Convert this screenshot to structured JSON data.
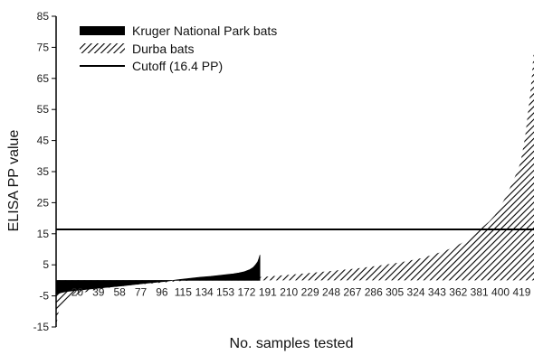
{
  "chart_data": {
    "type": "area",
    "xlabel": "No. samples tested",
    "ylabel": "ELISA PP value",
    "ylim": [
      -15,
      85
    ],
    "y_ticks": [
      -15,
      -5,
      5,
      15,
      25,
      35,
      45,
      55,
      65,
      75,
      85
    ],
    "x_ticks": [
      20,
      39,
      58,
      77,
      96,
      115,
      134,
      153,
      172,
      191,
      210,
      229,
      248,
      267,
      286,
      305,
      324,
      343,
      362,
      381,
      400,
      419
    ],
    "xlim": [
      1,
      430
    ],
    "legend_position": "top-left",
    "cutoff": {
      "label": "Cutoff (16.4 PP)",
      "value": 16.4
    },
    "series": [
      {
        "name": "Kruger National Park bats",
        "fill": "solid",
        "color": "#000000",
        "x": [
          1,
          5,
          10,
          20,
          40,
          60,
          80,
          100,
          110,
          120,
          130,
          140,
          150,
          160,
          165,
          170,
          175,
          178,
          180,
          182,
          183,
          184
        ],
        "values": [
          -4.5,
          -4.0,
          -3.6,
          -3.2,
          -2.5,
          -1.8,
          -1.0,
          -0.3,
          0.2,
          0.6,
          1.0,
          1.3,
          1.7,
          2.1,
          2.4,
          2.8,
          3.5,
          4.2,
          5.0,
          6.0,
          7.0,
          8.2
        ]
      },
      {
        "name": "Durba bats",
        "fill": "hatched",
        "color": "#000000",
        "x": [
          1,
          3,
          5,
          8,
          12,
          20,
          30,
          50,
          70,
          90,
          110,
          130,
          150,
          170,
          190,
          210,
          230,
          250,
          270,
          290,
          310,
          330,
          350,
          360,
          370,
          375,
          380,
          385,
          390,
          395,
          400,
          405,
          410,
          415,
          418,
          420,
          422,
          424,
          426,
          428,
          429,
          430
        ],
        "values": [
          -15,
          -10.5,
          -8.5,
          -7,
          -5.5,
          -4.5,
          -3.5,
          -2.3,
          -1.5,
          -0.9,
          -0.3,
          0.1,
          0.4,
          0.7,
          1.2,
          1.8,
          2.4,
          3.1,
          3.8,
          4.7,
          5.8,
          7.2,
          9.5,
          11,
          13,
          14.5,
          16,
          17.5,
          19,
          21,
          24,
          27,
          31,
          35,
          38,
          42,
          46,
          52,
          58,
          65,
          70,
          74
        ]
      }
    ]
  }
}
